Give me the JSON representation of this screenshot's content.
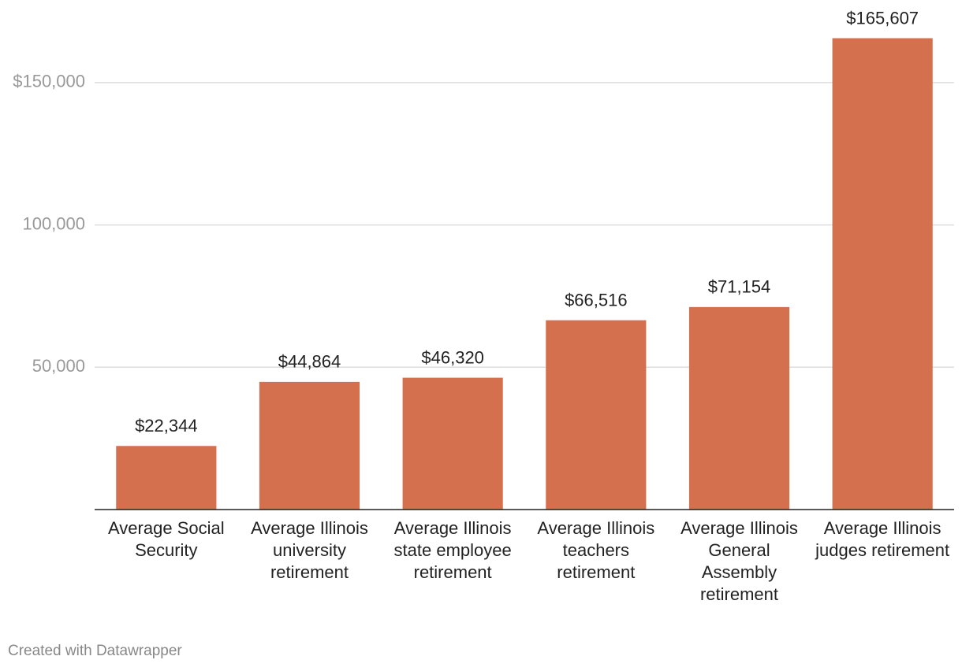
{
  "chart_data": {
    "type": "bar",
    "categories": [
      "Average Social Security",
      "Average Illinois university retirement",
      "Average Illinois state employee retirement",
      "Average Illinois teachers retirement",
      "Average Illinois General Assembly retirement",
      "Average Illinois judges retirement"
    ],
    "values": [
      22344,
      44864,
      46320,
      66516,
      71154,
      165607
    ],
    "value_labels": [
      "$22,344",
      "$44,864",
      "$46,320",
      "$66,516",
      "$71,154",
      "$165,607"
    ],
    "color": "#d4704e",
    "ylim": [
      0,
      160000
    ],
    "yticks": [
      {
        "value": 50000,
        "label": "50,000"
      },
      {
        "value": 100000,
        "label": "100,000"
      },
      {
        "value": 150000,
        "label": "$150,000"
      }
    ],
    "grid": true,
    "credit": "Created with Datawrapper"
  }
}
